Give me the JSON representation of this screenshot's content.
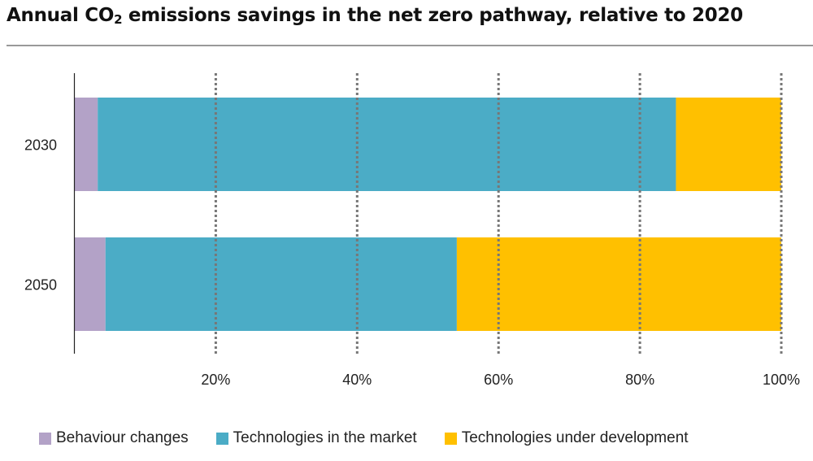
{
  "chart_data": {
    "type": "bar",
    "orientation": "horizontal",
    "stacked": true,
    "title": "Annual CO",
    "title_sub": "2",
    "title_rest": " emissions savings in the net zero pathway, relative to 2020",
    "categories": [
      "2030",
      "2050"
    ],
    "series": [
      {
        "name": "Behaviour changes",
        "color": "#b3a2c7",
        "values": [
          3.3,
          4.4
        ]
      },
      {
        "name": "Technologies in the market",
        "color": "#4bacc6",
        "values": [
          81.8,
          49.7
        ]
      },
      {
        "name": "Technologies under development",
        "color": "#ffc000",
        "values": [
          14.9,
          45.9
        ]
      }
    ],
    "xlim": [
      0,
      100
    ],
    "xticks": [
      20,
      40,
      60,
      80,
      100
    ],
    "xtick_labels": [
      "20%",
      "40%",
      "60%",
      "80%",
      "100%"
    ],
    "grid": "vertical dashed",
    "legend": "bottom"
  }
}
